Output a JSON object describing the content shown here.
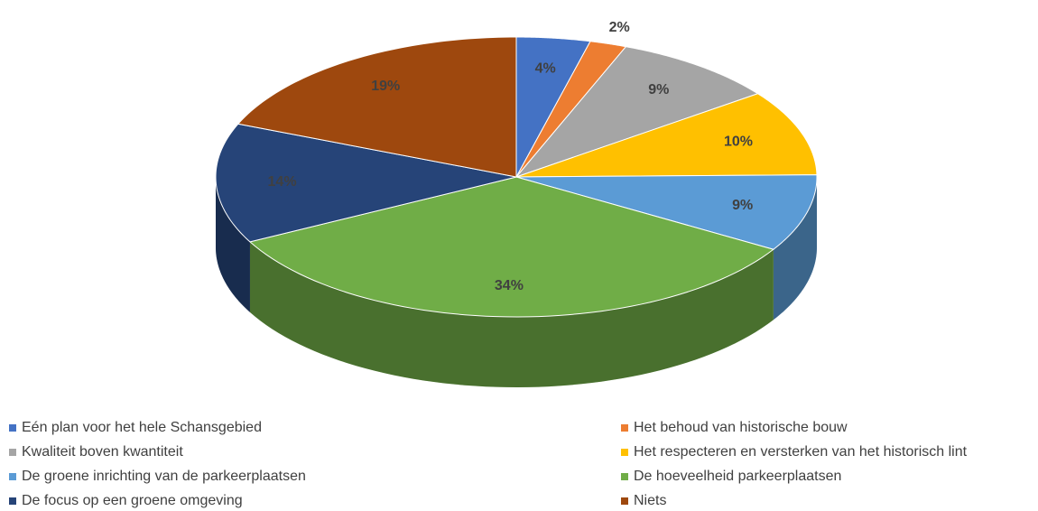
{
  "chart_data": {
    "type": "pie",
    "categories": [
      "Eén plan voor het hele Schansgebied",
      "Het behoud van historische bouw",
      "Kwaliteit boven kwantiteit",
      "Het respecteren en versterken van het historisch lint",
      "De groene inrichting van de parkeerplaatsen",
      "De hoeveelheid parkeerplaatsen",
      "De focus op een groene omgeving",
      "Niets"
    ],
    "values": [
      4,
      2,
      9,
      10,
      9,
      34,
      14,
      19
    ],
    "value_labels": [
      "4%",
      "2%",
      "9%",
      "10%",
      "9%",
      "34%",
      "14%",
      "19%"
    ],
    "colors": [
      "#4472c4",
      "#ed7d31",
      "#a5a5a5",
      "#ffc000",
      "#5b9bd5",
      "#70ad47",
      "#264478",
      "#9e480e"
    ],
    "legend": "bottom"
  }
}
